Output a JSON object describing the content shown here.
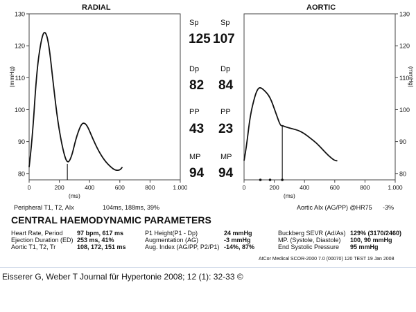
{
  "radial": {
    "title": "RADIAL",
    "ylabel": "(mmHg)",
    "xlabel": "(ms)",
    "yticks": [
      "130",
      "120",
      "110",
      "100",
      "90",
      "80"
    ],
    "xticks": [
      "0",
      "200",
      "400",
      "600",
      "800",
      "1.000"
    ]
  },
  "aortic": {
    "title": "AORTIC",
    "ylabel": "(mmHg)",
    "xlabel": "(ms)",
    "yticks": [
      "130",
      "120",
      "110",
      "100",
      "90",
      "80"
    ],
    "xticks": [
      "0",
      "200",
      "400",
      "600",
      "800",
      "1.000"
    ]
  },
  "center": {
    "sp_label": "Sp",
    "sp_radial": "125",
    "sp_aortic": "107",
    "dp_label": "Dp",
    "dp_radial": "82",
    "dp_aortic": "84",
    "pp_label": "PP",
    "pp_radial": "43",
    "pp_aortic": "23",
    "mp_label": "MP",
    "mp_radial": "94",
    "mp_aortic": "94"
  },
  "footer": {
    "peripheral_label": "Peripheral T1, T2, AIx",
    "peripheral_value": "104ms, 188ms, 39%",
    "aortic_aix_label": "Aortic AIx  (AG/PP) @HR75",
    "aortic_aix_value": "-3%"
  },
  "params": {
    "title": "CENTRAL HAEMODYNAMIC PARAMETERS",
    "col1": [
      {
        "label": "Heart Rate, Period",
        "value": "97 bpm, 617 ms"
      },
      {
        "label": "Ejection Duration (ED)",
        "value": "253 ms, 41%"
      },
      {
        "label": "Aortic T1, T2, Tr",
        "value": "108, 172, 151 ms"
      }
    ],
    "col2": [
      {
        "label": "P1 Height(P1 - Dp)",
        "value": "24 mmHg"
      },
      {
        "label": "Augmentation (AG)",
        "value": "-3 mmHg"
      },
      {
        "label": "Aug. Index (AG/PP, P2/P1)",
        "value": "-14%, 87%"
      }
    ],
    "col3": [
      {
        "label": "Buckberg SEVR (Ad/As)",
        "value": "129% (3170/2460)"
      },
      {
        "label": "MP. (Systole, Diastole)",
        "value": "100, 90 mmHg"
      },
      {
        "label": "End Systolic Pressure",
        "value": "95 mmHg"
      }
    ],
    "device": "AtCor Medical SCOR-2000 7.0 (00070) 120 TEST  19 Jan 2008"
  },
  "citation": "Eisserer G, Weber T Journal für Hypertonie 2008; 12 (1): 32-33 ©",
  "chart_data": [
    {
      "type": "line",
      "title": "RADIAL",
      "xlabel": "(ms)",
      "ylabel": "(mmHg)",
      "xlim": [
        0,
        1000
      ],
      "ylim": [
        78,
        130
      ],
      "ejection_marker_ms": 253,
      "series": [
        {
          "x": [
            0,
            20,
            50,
            80,
            104,
            130,
            160,
            190,
            225,
            253,
            280,
            310,
            340,
            360,
            385,
            420,
            460,
            500,
            540,
            570,
            600,
            617
          ],
          "y": [
            82,
            90,
            112,
            122,
            125,
            121,
            108,
            96,
            87,
            83,
            85,
            91,
            95,
            96,
            95,
            91,
            87,
            84,
            82,
            81,
            81,
            82
          ]
        }
      ]
    },
    {
      "type": "line",
      "title": "AORTIC",
      "xlabel": "(ms)",
      "ylabel": "(mmHg)",
      "xlim": [
        0,
        1000
      ],
      "ylim": [
        78,
        130
      ],
      "ejection_marker_ms": 253,
      "series": [
        {
          "x": [
            0,
            15,
            40,
            70,
            90,
            108,
            135,
            172,
            210,
            240,
            253,
            280,
            320,
            360,
            400,
            440,
            480,
            520,
            560,
            600,
            617
          ],
          "y": [
            84,
            88,
            98,
            104,
            106.5,
            107,
            106,
            104,
            99,
            95,
            95,
            94.5,
            94,
            93.5,
            92.5,
            91,
            89.5,
            87.5,
            85.5,
            84,
            84
          ]
        }
      ]
    }
  ]
}
